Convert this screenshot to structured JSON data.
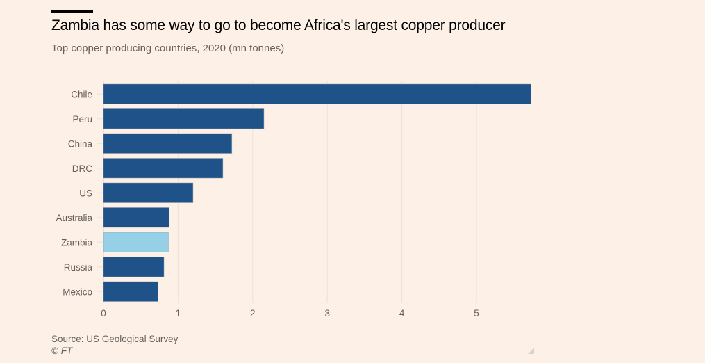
{
  "header": {
    "title": "Zambia has some way to go to become Africa's largest copper producer",
    "subtitle": "Top copper producing countries, 2020 (mn tonnes)"
  },
  "footer": {
    "source": "Source: US Geological Survey",
    "copyright": "© FT"
  },
  "colors": {
    "background": "#fdf0e6",
    "bar": "#1f5289",
    "highlight": "#96d0e6",
    "gridline": "#ebe2d9",
    "text": "#66605c"
  },
  "chart_data": {
    "type": "bar",
    "orientation": "horizontal",
    "title": "Zambia has some way to go to become Africa's largest copper producer",
    "subtitle": "Top copper producing countries, 2020 (mn tonnes)",
    "xlabel": "",
    "ylabel": "",
    "categories": [
      "Chile",
      "Peru",
      "China",
      "DRC",
      "US",
      "Australia",
      "Zambia",
      "Russia",
      "Mexico"
    ],
    "values": [
      5.73,
      2.15,
      1.72,
      1.6,
      1.2,
      0.88,
      0.87,
      0.81,
      0.73
    ],
    "highlight": "Zambia",
    "xlim": [
      0,
      5.8
    ],
    "xticks": [
      0,
      1,
      2,
      3,
      4,
      5
    ],
    "xtick_labels": [
      "0",
      "1",
      "2",
      "3",
      "4",
      "5"
    ],
    "grid": true,
    "legend": "none",
    "unit": "mn tonnes"
  }
}
